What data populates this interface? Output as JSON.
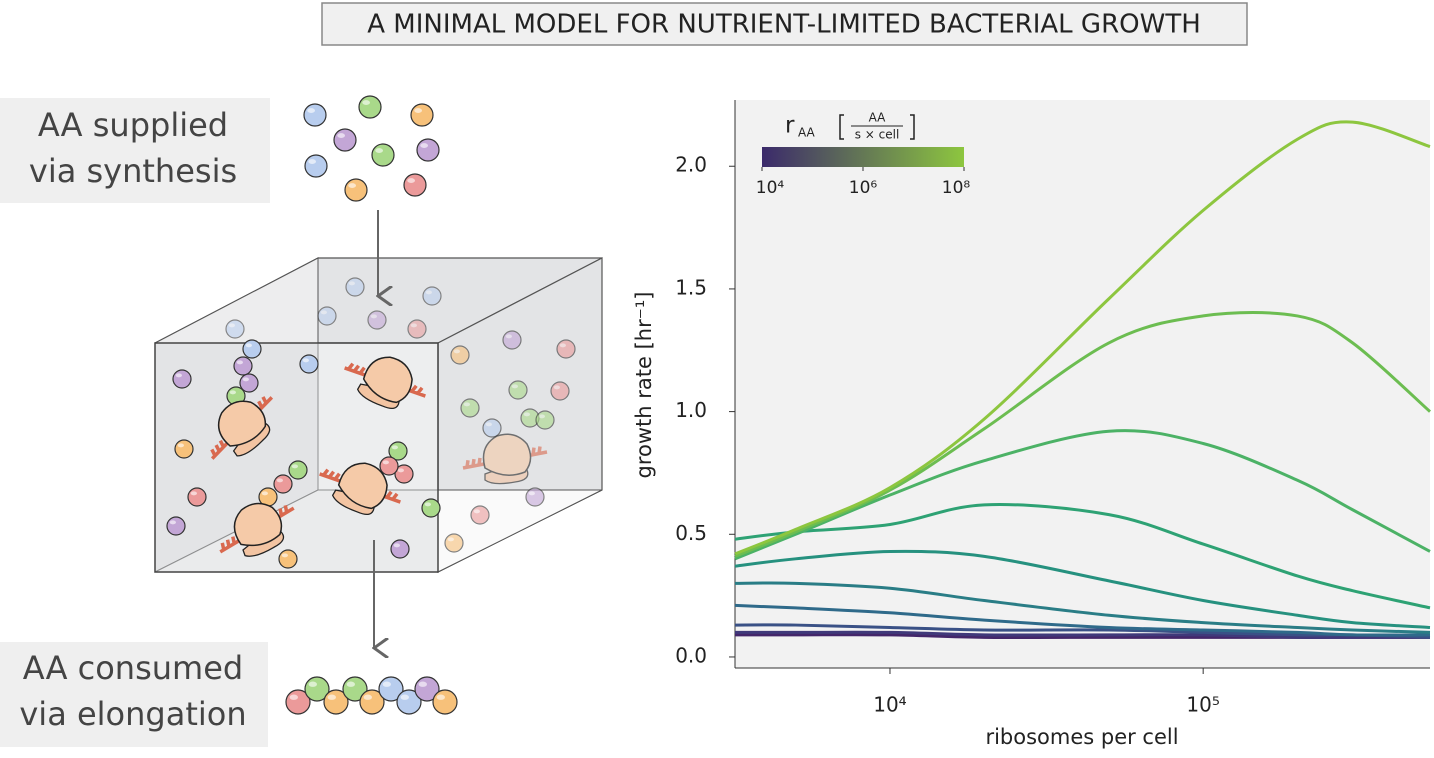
{
  "title": "A MINIMAL MODEL FOR NUTRIENT-LIMITED BACTERIAL GROWTH",
  "diagram": {
    "supply_label": [
      "AA supplied",
      "via synthesis"
    ],
    "consume_label": [
      "AA consumed",
      "via elongation"
    ]
  },
  "chart_data": {
    "type": "line",
    "x_label": "ribosomes per cell",
    "y_label": "growth rate [hr⁻¹]",
    "xscale": "log",
    "x": [
      3200,
      5000,
      10000,
      20000,
      50000,
      100000,
      200000,
      300000,
      530000
    ],
    "series": [
      {
        "color": "#8dc63f",
        "values": [
          0.42,
          0.52,
          0.69,
          0.97,
          1.46,
          1.82,
          2.11,
          2.18,
          2.08
        ]
      },
      {
        "color": "#6cbd51",
        "values": [
          0.41,
          0.51,
          0.68,
          0.93,
          1.28,
          1.39,
          1.39,
          1.28,
          1.0
        ]
      },
      {
        "color": "#4cb266",
        "values": [
          0.4,
          0.5,
          0.66,
          0.8,
          0.92,
          0.87,
          0.72,
          0.6,
          0.43
        ]
      },
      {
        "color": "#2ea274",
        "values": [
          0.48,
          0.51,
          0.54,
          0.62,
          0.58,
          0.46,
          0.33,
          0.27,
          0.2
        ]
      },
      {
        "color": "#26917f",
        "values": [
          0.37,
          0.4,
          0.43,
          0.41,
          0.31,
          0.23,
          0.17,
          0.14,
          0.12
        ]
      },
      {
        "color": "#2a7d86",
        "values": [
          0.3,
          0.3,
          0.28,
          0.23,
          0.17,
          0.14,
          0.12,
          0.11,
          0.1
        ]
      },
      {
        "color": "#2f6a8a",
        "values": [
          0.21,
          0.2,
          0.18,
          0.15,
          0.12,
          0.11,
          0.1,
          0.09,
          0.09
        ]
      },
      {
        "color": "#3a5186",
        "values": [
          0.13,
          0.13,
          0.12,
          0.11,
          0.11,
          0.1,
          0.09,
          0.09,
          0.08
        ]
      },
      {
        "color": "#40397a",
        "values": [
          0.1,
          0.1,
          0.1,
          0.09,
          0.09,
          0.09,
          0.08,
          0.08,
          0.08
        ]
      },
      {
        "color": "#44266a",
        "values": [
          0.09,
          0.09,
          0.09,
          0.08,
          0.08,
          0.08,
          0.08,
          0.08,
          0.08
        ]
      }
    ],
    "xlim": [
      3200,
      530000
    ],
    "xticks": [
      {
        "value": 10000,
        "label": "10⁴"
      },
      {
        "value": 100000,
        "label": "10⁵"
      }
    ],
    "ylim": [
      -0.045,
      2.27
    ],
    "yticks": [
      {
        "value": 0,
        "label": "0.0"
      },
      0.5,
      {
        "value": 1,
        "label": "1.0"
      },
      1.5,
      {
        "value": 2,
        "label": "2.0"
      }
    ],
    "grid": false,
    "colorbar": {
      "label": "r",
      "label_sub": "AA",
      "units_num": "AA",
      "units_den": "s × cell",
      "colors": [
        "#3b2a6b",
        "#8dc63f"
      ],
      "scale": "log",
      "lim": [
        10000,
        100000000
      ],
      "ticks": [
        {
          "value": 10000,
          "label": "10⁴"
        },
        {
          "value": 1000000,
          "label": "10⁶"
        },
        {
          "value": 100000000,
          "label": "10⁸"
        }
      ]
    }
  }
}
